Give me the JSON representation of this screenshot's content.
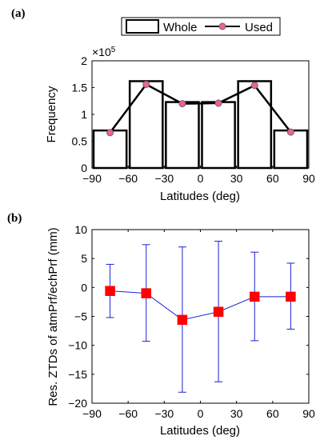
{
  "panels": {
    "a": {
      "label": "(a)"
    },
    "b": {
      "label": "(b)"
    }
  },
  "chart_data": [
    {
      "type": "bar",
      "panel": "a",
      "bar_edges": [
        -90,
        -60,
        -30,
        0,
        30,
        60,
        90
      ],
      "series": [
        {
          "name": "Whole",
          "type": "bar",
          "x": [
            -75,
            -45,
            -15,
            15,
            45,
            75
          ],
          "values": [
            70000,
            162000,
            123000,
            123000,
            162000,
            70000
          ]
        },
        {
          "name": "Used",
          "type": "line",
          "x": [
            -75,
            -45,
            -15,
            15,
            45,
            75
          ],
          "values": [
            66000,
            156000,
            120000,
            121000,
            154000,
            67000
          ]
        }
      ],
      "xlabel": "Latitudes (deg)",
      "ylabel": "Frequency",
      "y_exponent_label": "×10",
      "y_exponent": "5",
      "xlim": [
        -90,
        90
      ],
      "ylim": [
        0,
        200000
      ],
      "xticks": [
        "−90",
        "−60",
        "−30",
        "0",
        "30",
        "60",
        "90"
      ],
      "yticks": [
        "0",
        "0.5",
        "1",
        "1.5",
        "2"
      ],
      "legend_position": "top-center",
      "colors": {
        "bar_edge": "#000000",
        "line": "#000000",
        "marker_fill": "#e8697d",
        "marker_edge": "#7b4fa0"
      }
    },
    {
      "type": "line",
      "panel": "b",
      "series": [
        {
          "x": [
            -75,
            -45,
            -15,
            15,
            45,
            75
          ],
          "values": [
            -0.6,
            -1.0,
            -5.6,
            -4.2,
            -1.6,
            -1.6
          ],
          "error_low": [
            -5.2,
            -9.3,
            -18.1,
            -16.3,
            -9.2,
            -7.2
          ],
          "error_high": [
            4.0,
            7.4,
            7.0,
            8.0,
            6.1,
            4.2
          ]
        }
      ],
      "xlabel": "Latitudes (deg)",
      "ylabel": "Res. ZTDs of atmPrf/echPrf (mm)",
      "xlim": [
        -90,
        90
      ],
      "ylim": [
        -20,
        10
      ],
      "xticks": [
        "−90",
        "−60",
        "−30",
        "0",
        "30",
        "60",
        "90"
      ],
      "yticks": [
        "−20",
        "−15",
        "−10",
        "−5",
        "0",
        "5",
        "10"
      ],
      "colors": {
        "line": "#1f1fd6",
        "errorbar": "#1f1fd6",
        "marker": "#ff0000"
      }
    }
  ]
}
